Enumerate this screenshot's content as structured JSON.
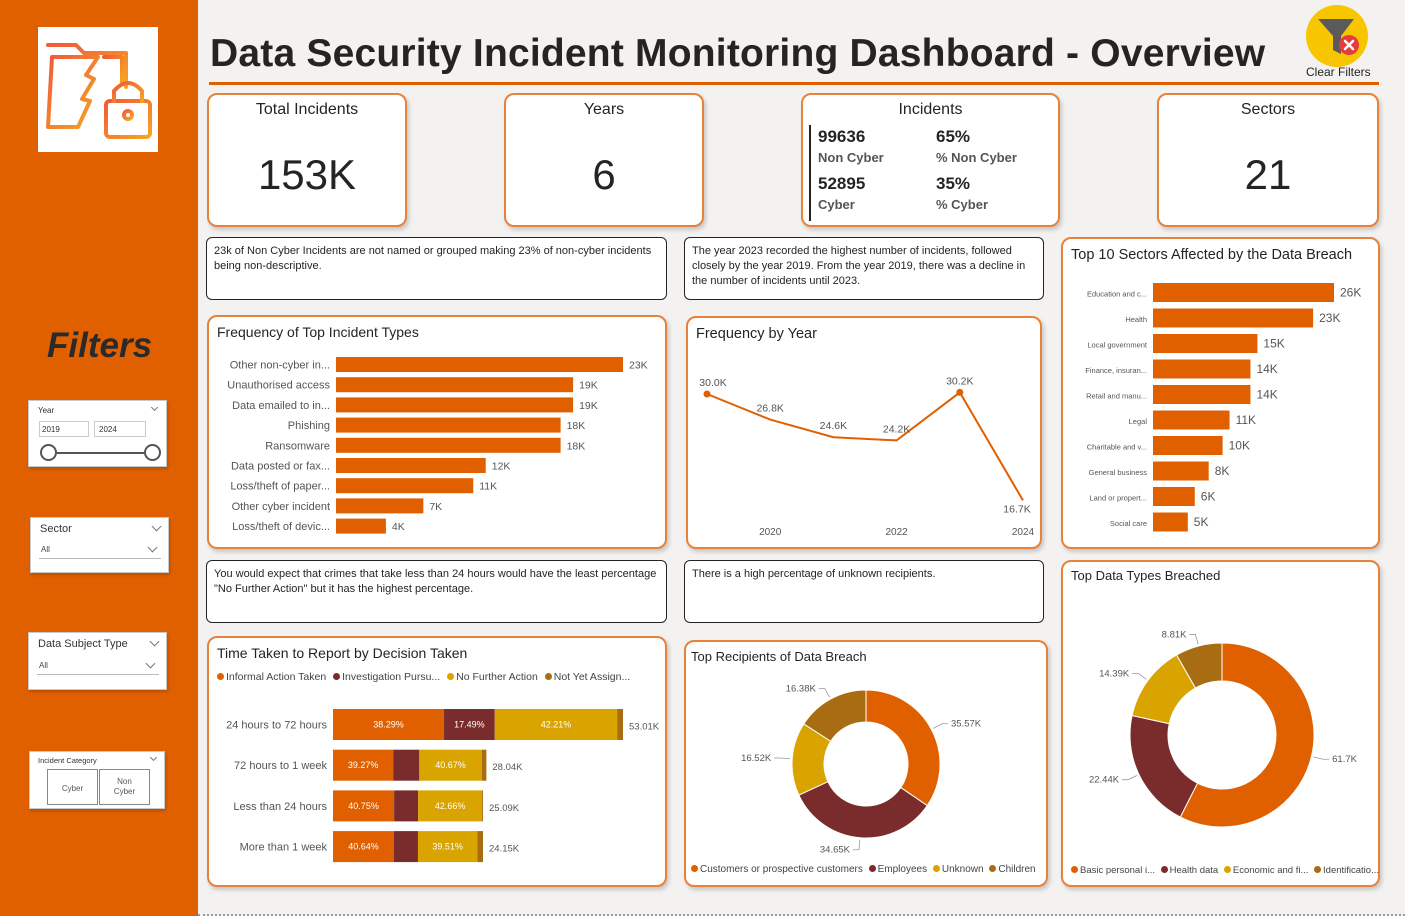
{
  "title": "Data Security Incident Monitoring Dashboard - Overview",
  "clear_filters": "Clear Filters",
  "colors": {
    "accent": "#e06000",
    "dark": "#7a2b2b",
    "gold": "#d9a300",
    "brown": "#a86d12"
  },
  "sidebar": {
    "filters_heading": "Filters",
    "year": {
      "label": "Year",
      "from": "2019",
      "to": "2024"
    },
    "sector": {
      "label": "Sector",
      "value": "All"
    },
    "data_subject_type": {
      "label": "Data Subject Type",
      "value": "All"
    },
    "incident_category": {
      "label": "Incident Category",
      "options": [
        "Cyber",
        "Non\nCyber"
      ]
    }
  },
  "kpis": {
    "total": {
      "label": "Total Incidents",
      "value": "153K"
    },
    "years": {
      "label": "Years",
      "value": "6"
    },
    "incidents": {
      "label": "Incidents",
      "non_cyber_count": "99636",
      "non_cyber_label": "Non Cyber",
      "non_cyber_pct": "65%",
      "non_cyber_pct_label": "% Non Cyber",
      "cyber_count": "52895",
      "cyber_label": "Cyber",
      "cyber_pct": "35%",
      "cyber_pct_label": "% Cyber"
    },
    "sectors": {
      "label": "Sectors",
      "value": "21"
    }
  },
  "notes": {
    "non_cyber": "23k of Non Cyber Incidents are not named or grouped making 23% of non-cyber incidents being non-descriptive.",
    "year": "The year 2023 recorded the highest number of incidents, followed closely by the year 2019. From the year 2019, there was a decline in the number of incidents until 2023.",
    "report_time": "You would expect that crimes that take less than 24 hours would have the least percentage \"No Further Action\" but it has the highest percentage.",
    "recipients": "There is a high percentage of unknown recipients."
  },
  "chart_data": [
    {
      "id": "incident_types",
      "type": "bar",
      "title": "Frequency of Top Incident Types",
      "categories": [
        "Other non-cyber in...",
        "Unauthorised access",
        "Data emailed to in...",
        "Phishing",
        "Ransomware",
        "Data posted or fax...",
        "Loss/theft of paper...",
        "Other cyber incident",
        "Loss/theft of devic..."
      ],
      "values": [
        23,
        19,
        19,
        18,
        18,
        12,
        11,
        7,
        4
      ],
      "labels": [
        "23K",
        "19K",
        "19K",
        "18K",
        "18K",
        "12K",
        "11K",
        "7K",
        "4K"
      ]
    },
    {
      "id": "by_year",
      "type": "line",
      "title": "Frequency by Year",
      "x": [
        2019,
        2020,
        2021,
        2022,
        2023,
        2024
      ],
      "values": [
        30.0,
        26.8,
        24.6,
        24.2,
        30.2,
        16.7
      ],
      "labels": [
        "30.0K",
        "26.8K",
        "24.6K",
        "24.2K",
        "30.2K",
        "16.7K"
      ],
      "xticks": [
        "2020",
        "2022",
        "2024"
      ]
    },
    {
      "id": "sectors",
      "type": "bar",
      "title": "Top 10 Sectors Affected by the Data Breach",
      "categories": [
        "Education and c...",
        "Health",
        "Local government",
        "Finance, insuran...",
        "Retail and manu...",
        "Legal",
        "Charitable and v...",
        "General business",
        "Land or propert...",
        "Social care"
      ],
      "values": [
        26,
        23,
        15,
        14,
        14,
        11,
        10,
        8,
        6,
        5
      ],
      "labels": [
        "26K",
        "23K",
        "15K",
        "14K",
        "14K",
        "11K",
        "10K",
        "8K",
        "6K",
        "5K"
      ]
    },
    {
      "id": "report_time",
      "type": "bar",
      "title": "Time Taken to Report by Decision Taken",
      "legend": [
        "Informal Action Taken",
        "Investigation Pursu...",
        "No Further Action",
        "Not Yet Assign..."
      ],
      "categories": [
        "24 hours to 72 hours",
        "72 hours to 1 week",
        "Less than 24 hours",
        "More than 1 week"
      ],
      "totals": [
        "53.01K",
        "28.04K",
        "25.09K",
        "24.15K"
      ],
      "series": [
        {
          "name": "Informal Action Taken",
          "values": [
            38.29,
            39.27,
            40.75,
            40.64
          ],
          "labels": [
            "38.29%",
            "39.27%",
            "40.75%",
            "40.64%"
          ]
        },
        {
          "name": "Investigation Pursu...",
          "values": [
            17.49,
            17.0,
            16.0,
            16.0
          ],
          "labels": [
            "17.49%",
            "",
            "",
            ""
          ]
        },
        {
          "name": "No Further Action",
          "values": [
            42.21,
            40.67,
            42.66,
            39.51
          ],
          "labels": [
            "42.21%",
            "40.67%",
            "42.66%",
            "39.51%"
          ]
        },
        {
          "name": "Not Yet Assign...",
          "values": [
            2.01,
            3.06,
            0.59,
            3.85
          ],
          "labels": [
            "",
            "",
            "",
            ""
          ]
        }
      ]
    },
    {
      "id": "recipients",
      "type": "pie",
      "title": "Top Recipients of Data Breach",
      "categories": [
        "Customers or prospective customers",
        "Employees",
        "Unknown",
        "Children"
      ],
      "values": [
        35.57,
        34.65,
        16.52,
        16.38
      ],
      "labels": [
        "35.57K",
        "34.65K",
        "16.52K",
        "16.38K"
      ]
    },
    {
      "id": "data_types",
      "type": "pie",
      "title": "Top Data Types Breached",
      "categories": [
        "Basic personal i...",
        "Health data",
        "Economic and fi...",
        "Identificatio..."
      ],
      "values": [
        61.7,
        22.44,
        14.39,
        8.81
      ],
      "labels": [
        "61.7K",
        "22.44K",
        "14.39K",
        "8.81K"
      ]
    }
  ]
}
